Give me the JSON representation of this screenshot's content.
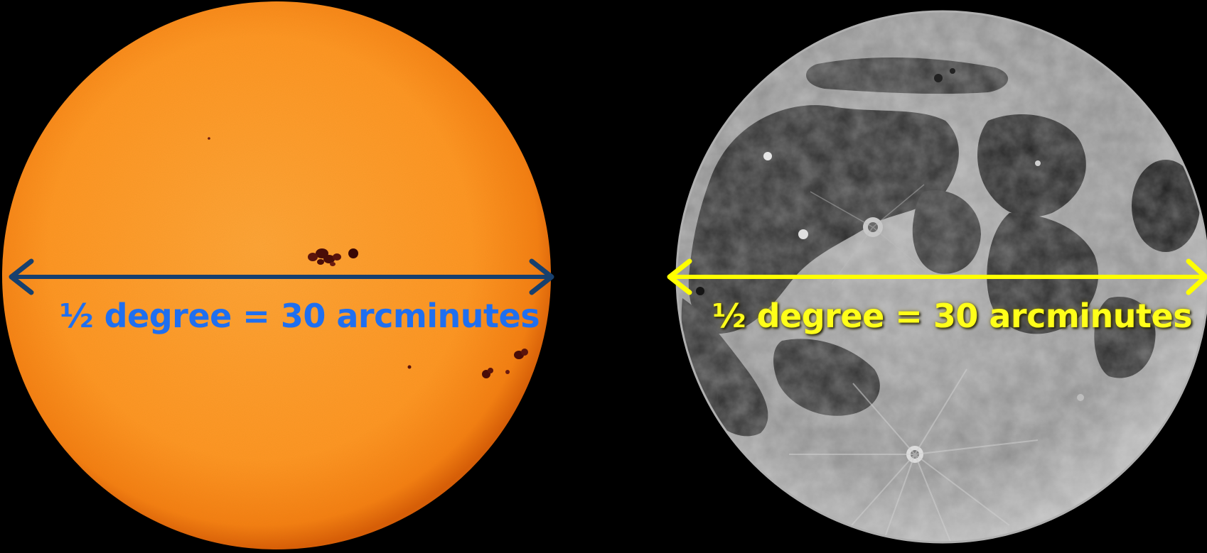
{
  "sun": {
    "label": "½ degree = 30 arcminutes",
    "disk_color": "#ff9a2a",
    "edge_color": "#e0600a",
    "sunspot_color": "#4a0d08",
    "arrow_color": "#17406e",
    "label_color": "#1f6ff0"
  },
  "moon": {
    "label": "½ degree = 30 arcminutes",
    "highland_color": "#9a9a9a",
    "mare_color": "#2c2c2c",
    "arrow_color": "#ffff00",
    "label_color": "#ffff1a"
  },
  "background_color": "#000000"
}
